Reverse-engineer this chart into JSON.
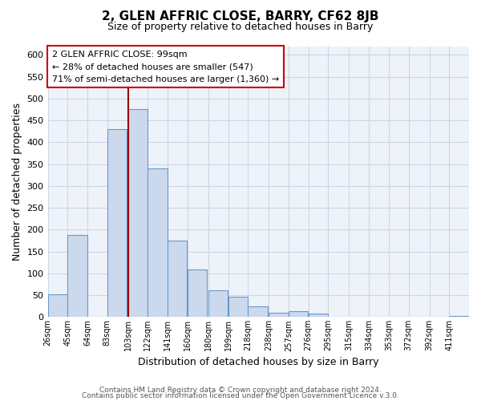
{
  "title": "2, GLEN AFFRIC CLOSE, BARRY, CF62 8JB",
  "subtitle": "Size of property relative to detached houses in Barry",
  "xlabel": "Distribution of detached houses by size in Barry",
  "ylabel": "Number of detached properties",
  "bar_color": "#ccd9ed",
  "bar_edge_color": "#6699cc",
  "grid_color": "#c8d4e8",
  "background_color": "#eef2f9",
  "bins": [
    26,
    45,
    64,
    83,
    103,
    122,
    141,
    160,
    180,
    199,
    218,
    238,
    257,
    276,
    295,
    315,
    334,
    353,
    372,
    392,
    411
  ],
  "heights": [
    52,
    188,
    0,
    430,
    475,
    340,
    175,
    108,
    62,
    47,
    25,
    10,
    13,
    8,
    1,
    1,
    1,
    0,
    1,
    0,
    2
  ],
  "tick_labels": [
    "26sqm",
    "45sqm",
    "64sqm",
    "83sqm",
    "103sqm",
    "122sqm",
    "141sqm",
    "160sqm",
    "180sqm",
    "199sqm",
    "218sqm",
    "238sqm",
    "257sqm",
    "276sqm",
    "295sqm",
    "315sqm",
    "334sqm",
    "353sqm",
    "372sqm",
    "392sqm",
    "411sqm"
  ],
  "vline_x": 103,
  "vline_color": "#990000",
  "ylim": [
    0,
    620
  ],
  "yticks": [
    0,
    50,
    100,
    150,
    200,
    250,
    300,
    350,
    400,
    450,
    500,
    550,
    600
  ],
  "annotation_line1": "2 GLEN AFFRIC CLOSE: 99sqm",
  "annotation_line2": "← 28% of detached houses are smaller (547)",
  "annotation_line3": "71% of semi-detached houses are larger (1,360) →",
  "annotation_box_color": "#ffffff",
  "annotation_border_color": "#cc0000",
  "footer_line1": "Contains HM Land Registry data © Crown copyright and database right 2024.",
  "footer_line2": "Contains public sector information licensed under the Open Government Licence v.3.0."
}
